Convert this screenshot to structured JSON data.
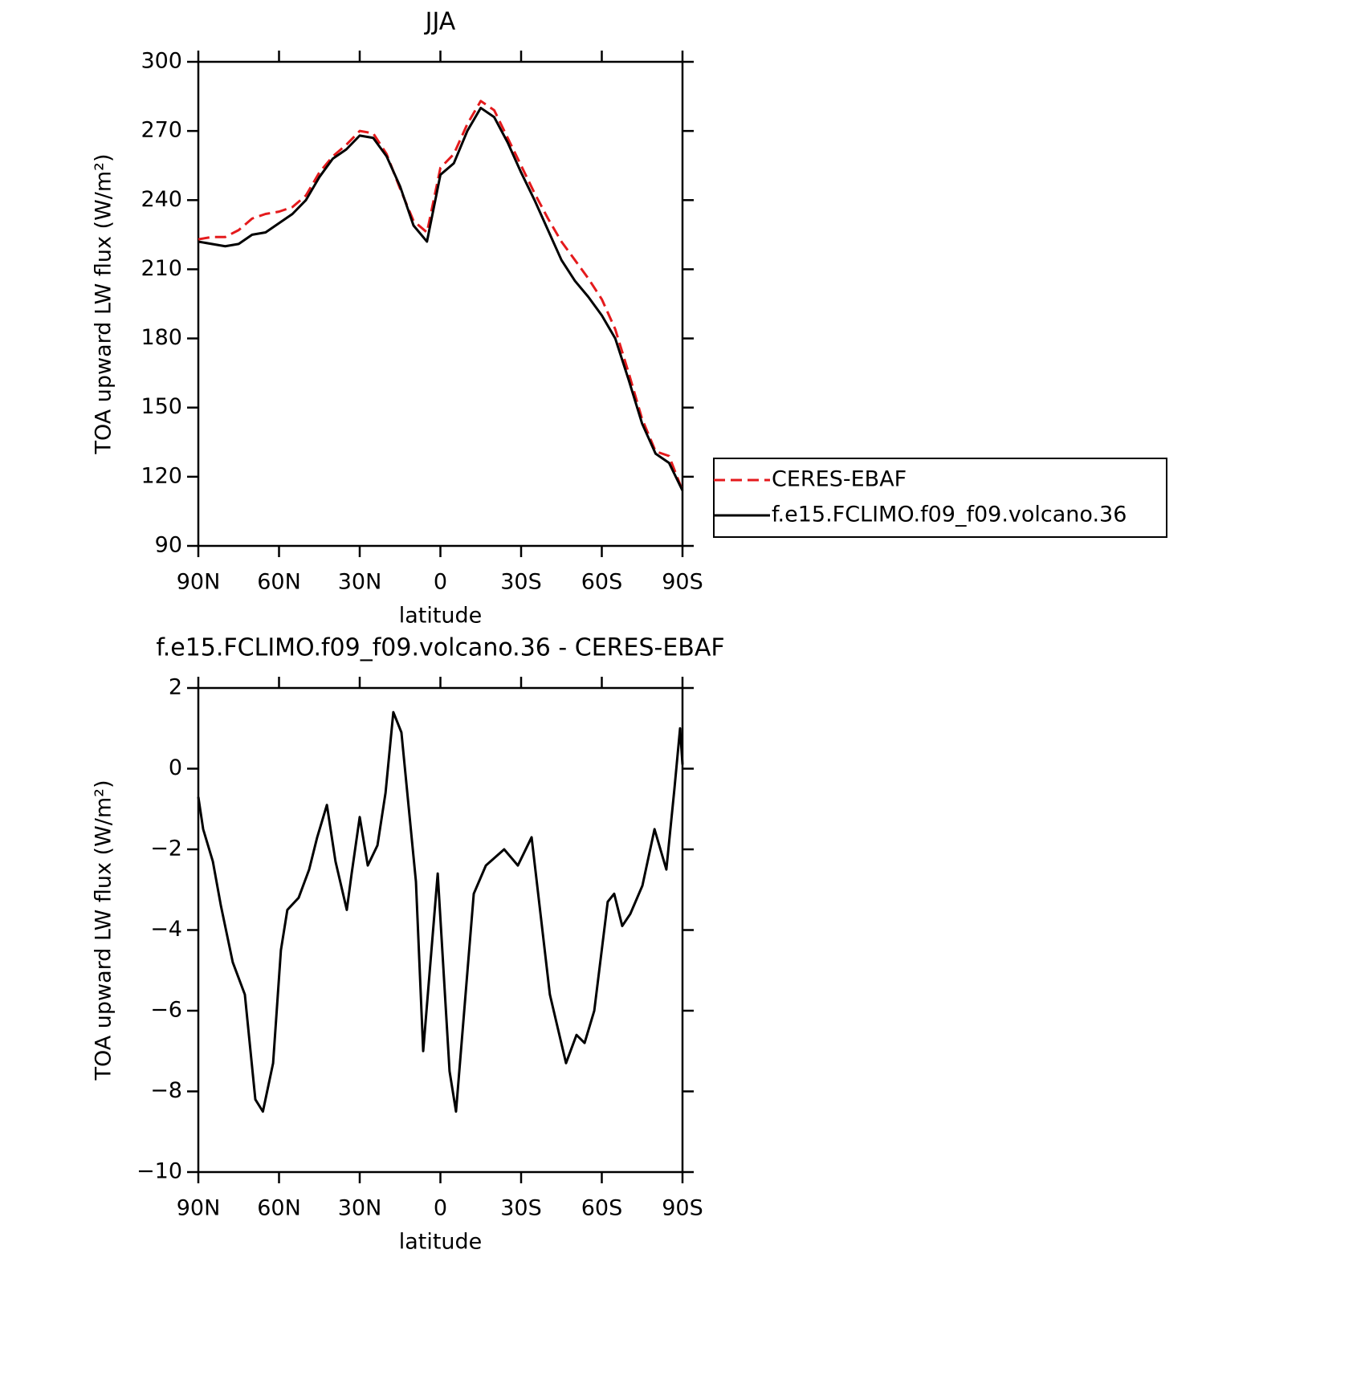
{
  "chart_data": [
    {
      "type": "line",
      "title": "JJA",
      "x_label": "latitude",
      "y_label": "TOA upward LW flux (W/m²)",
      "x": [
        90,
        85,
        80,
        75,
        70,
        65,
        60,
        55,
        50,
        45,
        40,
        35,
        30,
        25,
        20,
        15,
        10,
        5,
        0,
        -5,
        -10,
        -15,
        -20,
        -25,
        -30,
        -35,
        -40,
        -45,
        -50,
        -55,
        -60,
        -65,
        -70,
        -75,
        -80,
        -85,
        -90
      ],
      "series": [
        {
          "name": "CERES-EBAF",
          "color": "#e41a1c",
          "linestyle": "dashed",
          "values": [
            223,
            224,
            224,
            227,
            232,
            234,
            235,
            237,
            242,
            252,
            259,
            264,
            270,
            269,
            260,
            245,
            231,
            226,
            254,
            260,
            273,
            283,
            279,
            267,
            255,
            243,
            232,
            222,
            214,
            206,
            197,
            184,
            165,
            145,
            131,
            129,
            114
          ]
        },
        {
          "name": "f.e15.FCLIMO.f09_f09.volcano.36",
          "color": "#000000",
          "linestyle": "solid",
          "values": [
            222,
            221,
            220,
            221,
            225,
            226,
            230,
            234,
            240,
            250,
            258,
            262,
            268,
            267,
            259,
            246,
            229,
            222,
            251,
            256,
            270,
            280,
            276,
            265,
            252,
            240,
            227,
            214,
            205,
            198,
            190,
            180,
            162,
            143,
            130,
            126,
            114
          ]
        }
      ],
      "xlim": [
        90,
        -90
      ],
      "xticks": [
        {
          "value": 90,
          "label": "90N"
        },
        {
          "value": 60,
          "label": "60N"
        },
        {
          "value": 30,
          "label": "30N"
        },
        0,
        {
          "value": -30,
          "label": "30S"
        },
        {
          "value": -60,
          "label": "60S"
        },
        {
          "value": -90,
          "label": "90S"
        }
      ],
      "ylim": [
        90,
        300
      ],
      "yticks": [
        90,
        120,
        150,
        180,
        210,
        240,
        270,
        300
      ],
      "legend": "right"
    },
    {
      "type": "line",
      "title": "f.e15.FCLIMO.f09_f09.volcano.36 - CERES-EBAF",
      "x_label": "latitude",
      "y_label": "TOA upward LW flux (W/m²)",
      "x": [
        90,
        88.2,
        84.6,
        81.6,
        77.2,
        72.7,
        68.8,
        66,
        62.2,
        59.3,
        56.9,
        52.7,
        48.8,
        45.8,
        42.2,
        39,
        34.8,
        33,
        30,
        27,
        23.4,
        20.4,
        17.5,
        14.5,
        9.1,
        6.4,
        1,
        -3.4,
        -5.8,
        -12.4,
        -16.9,
        -23.7,
        -28.8,
        -33.9,
        -40.7,
        -46.7,
        -50.6,
        -53.6,
        -57.2,
        -62.2,
        -64.6,
        -67.6,
        -70.6,
        -75.1,
        -79.6,
        -84,
        -87,
        -89.1,
        -90
      ],
      "series": [
        {
          "name": "f.e15.FCLIMO.f09_f09.volcano.36 - CERES-EBAF",
          "color": "#000000",
          "linestyle": "solid",
          "values": [
            -0.7,
            -1.5,
            -2.3,
            -3.4,
            -4.8,
            -5.6,
            -8.2,
            -8.5,
            -7.3,
            -4.5,
            -3.5,
            -3.2,
            -2.5,
            -1.7,
            -0.9,
            -2.3,
            -3.5,
            -2.6,
            -1.2,
            -2.4,
            -1.9,
            -0.6,
            1.4,
            0.9,
            -2.8,
            -7.0,
            -2.6,
            -7.5,
            -8.5,
            -3.1,
            -2.4,
            -2.0,
            -2.4,
            -1.7,
            -5.6,
            -7.3,
            -6.6,
            -6.8,
            -6.0,
            -3.3,
            -3.1,
            -3.9,
            -3.6,
            -2.9,
            -1.5,
            -2.5,
            -0.5,
            1.0,
            0.1
          ]
        }
      ],
      "xlim": [
        90,
        -90
      ],
      "xticks": [
        {
          "value": 90,
          "label": "90N"
        },
        {
          "value": 60,
          "label": "60N"
        },
        {
          "value": 30,
          "label": "30N"
        },
        0,
        {
          "value": -30,
          "label": "30S"
        },
        {
          "value": -60,
          "label": "60S"
        },
        {
          "value": -90,
          "label": "90S"
        }
      ],
      "ylim": [
        -10,
        2
      ],
      "yticks": [
        {
          "value": -10,
          "label": "−10"
        },
        {
          "value": -8,
          "label": "−8"
        },
        {
          "value": -6,
          "label": "−6"
        },
        {
          "value": -4,
          "label": "−4"
        },
        {
          "value": -2,
          "label": "−2"
        },
        0,
        2
      ]
    }
  ]
}
